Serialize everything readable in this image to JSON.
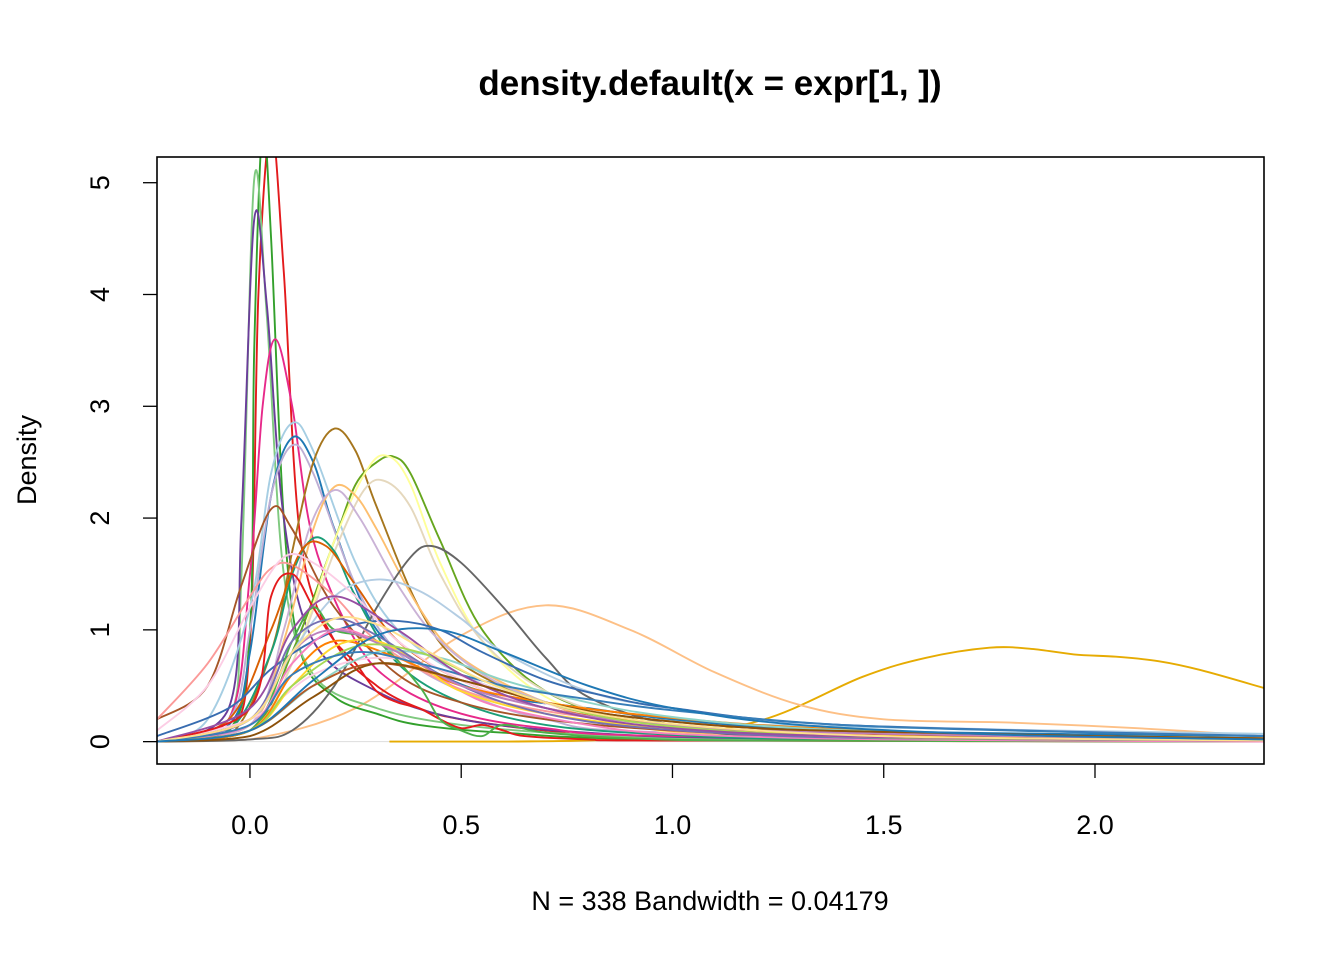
{
  "chart_data": {
    "type": "line",
    "title": "density.default(x = expr[1, ])",
    "xlabel": "N = 338   Bandwidth = 0.04179",
    "ylabel": "Density",
    "xlim": [
      -0.22,
      2.4
    ],
    "ylim": [
      -0.2,
      5.23
    ],
    "x_ticks": [
      0.0,
      0.5,
      1.0,
      1.5,
      2.0
    ],
    "x_tick_labels": [
      "0.0",
      "0.5",
      "1.0",
      "1.5",
      "2.0"
    ],
    "y_ticks": [
      0,
      1,
      2,
      3,
      4,
      5
    ],
    "y_tick_labels": [
      "0",
      "1",
      "2",
      "3",
      "4",
      "5"
    ],
    "grid": false,
    "legend": "none",
    "series": [
      {
        "color": "#E6AB02",
        "x": [
          0.33,
          0.6,
          0.9,
          1.2,
          1.45,
          1.6,
          1.75,
          1.85,
          1.95,
          2.05,
          2.15,
          2.25,
          2.4
        ],
        "y": [
          0.0,
          0.0,
          0.03,
          0.18,
          0.58,
          0.75,
          0.84,
          0.83,
          0.78,
          0.76,
          0.72,
          0.64,
          0.48
        ]
      },
      {
        "color": "#FDC086",
        "x": [
          -0.22,
          0.0,
          0.25,
          0.5,
          0.7,
          0.9,
          1.1,
          1.3,
          1.5,
          1.8,
          2.1,
          2.4
        ],
        "y": [
          0.0,
          0.02,
          0.3,
          0.95,
          1.22,
          1.0,
          0.62,
          0.33,
          0.2,
          0.17,
          0.12,
          0.05
        ]
      },
      {
        "color": "#E31A1C",
        "x": [
          -0.22,
          -0.05,
          0.0,
          0.02,
          0.05,
          0.08,
          0.12,
          0.2,
          0.3,
          0.4,
          0.5,
          0.7,
          1.0,
          2.4
        ],
        "y": [
          0.0,
          0.1,
          0.9,
          4.0,
          5.5,
          4.2,
          1.8,
          0.9,
          0.5,
          0.3,
          0.2,
          0.1,
          0.03,
          0.0
        ]
      },
      {
        "color": "#33A02C",
        "x": [
          -0.22,
          -0.05,
          0.0,
          0.01,
          0.03,
          0.05,
          0.08,
          0.12,
          0.2,
          0.3,
          0.4,
          0.6,
          1.0,
          2.4
        ],
        "y": [
          0.0,
          0.1,
          1.0,
          3.5,
          5.5,
          4.5,
          2.0,
          0.8,
          0.4,
          0.25,
          0.15,
          0.08,
          0.02,
          0.0
        ]
      },
      {
        "color": "#7FC97F",
        "x": [
          -0.22,
          -0.05,
          -0.02,
          0.01,
          0.04,
          0.08,
          0.15,
          0.3,
          0.5,
          0.8,
          1.2,
          2.4
        ],
        "y": [
          0.0,
          0.2,
          1.5,
          5.03,
          3.8,
          1.5,
          0.6,
          0.3,
          0.15,
          0.06,
          0.02,
          0.0
        ]
      },
      {
        "color": "#6A3D9A",
        "x": [
          -0.22,
          -0.05,
          -0.02,
          0.01,
          0.04,
          0.08,
          0.15,
          0.3,
          0.5,
          0.8,
          1.2,
          2.4
        ],
        "y": [
          0.0,
          0.3,
          2.0,
          4.67,
          3.9,
          2.0,
          0.9,
          0.45,
          0.2,
          0.08,
          0.03,
          0.0
        ]
      },
      {
        "color": "#E7298A",
        "x": [
          -0.22,
          -0.05,
          0.0,
          0.03,
          0.06,
          0.1,
          0.15,
          0.25,
          0.35,
          0.5,
          0.7,
          1.0,
          2.4
        ],
        "y": [
          0.0,
          0.2,
          1.5,
          3.0,
          3.6,
          3.0,
          1.8,
          0.9,
          0.5,
          0.25,
          0.12,
          0.05,
          0.0
        ]
      },
      {
        "color": "#A6CEE3",
        "x": [
          -0.22,
          -0.1,
          0.0,
          0.05,
          0.1,
          0.15,
          0.25,
          0.35,
          0.5,
          0.7,
          0.9,
          1.2,
          2.4
        ],
        "y": [
          0.0,
          0.2,
          1.2,
          2.4,
          2.85,
          2.6,
          1.6,
          1.0,
          0.6,
          0.35,
          0.25,
          0.15,
          0.07
        ]
      },
      {
        "color": "#1F78B4",
        "x": [
          -0.22,
          -0.05,
          0.0,
          0.05,
          0.1,
          0.15,
          0.2,
          0.3,
          0.45,
          0.6,
          0.8,
          1.0,
          1.4,
          2.4
        ],
        "y": [
          0.0,
          0.15,
          0.8,
          2.2,
          2.72,
          2.5,
          1.9,
          1.0,
          0.6,
          0.4,
          0.3,
          0.2,
          0.1,
          0.05
        ]
      },
      {
        "color": "#BEAED4",
        "x": [
          -0.22,
          -0.05,
          0.0,
          0.05,
          0.1,
          0.15,
          0.25,
          0.35,
          0.5,
          0.7,
          1.0,
          2.4
        ],
        "y": [
          0.0,
          0.2,
          1.0,
          2.2,
          2.65,
          2.4,
          1.4,
          0.8,
          0.45,
          0.2,
          0.08,
          0.0
        ]
      },
      {
        "color": "#A6761D",
        "x": [
          -0.22,
          -0.05,
          0.05,
          0.1,
          0.15,
          0.2,
          0.25,
          0.3,
          0.4,
          0.5,
          0.7,
          0.9,
          1.2,
          2.4
        ],
        "y": [
          0.0,
          0.05,
          0.8,
          1.7,
          2.5,
          2.8,
          2.6,
          2.1,
          1.2,
          0.7,
          0.35,
          0.2,
          0.1,
          0.03
        ]
      },
      {
        "color": "#66A61E",
        "x": [
          -0.22,
          0.0,
          0.1,
          0.2,
          0.25,
          0.3,
          0.34,
          0.38,
          0.45,
          0.55,
          0.7,
          0.9,
          1.2,
          2.4
        ],
        "y": [
          0.0,
          0.1,
          0.8,
          1.8,
          2.3,
          2.5,
          2.55,
          2.4,
          1.8,
          1.0,
          0.45,
          0.2,
          0.07,
          0.0
        ]
      },
      {
        "color": "#FFFF99",
        "x": [
          -0.22,
          0.0,
          0.1,
          0.2,
          0.28,
          0.33,
          0.38,
          0.45,
          0.55,
          0.7,
          0.9,
          1.2,
          2.4
        ],
        "y": [
          0.0,
          0.1,
          0.7,
          1.8,
          2.45,
          2.55,
          2.3,
          1.6,
          0.9,
          0.4,
          0.15,
          0.05,
          0.0
        ]
      },
      {
        "color": "#E5D8BD",
        "x": [
          -0.22,
          0.0,
          0.1,
          0.2,
          0.27,
          0.32,
          0.38,
          0.45,
          0.55,
          0.7,
          0.9,
          1.2,
          2.4
        ],
        "y": [
          0.0,
          0.1,
          0.7,
          1.7,
          2.25,
          2.33,
          2.1,
          1.5,
          0.9,
          0.45,
          0.2,
          0.07,
          0.0
        ]
      },
      {
        "color": "#FDBF6F",
        "x": [
          -0.22,
          0.0,
          0.08,
          0.15,
          0.2,
          0.25,
          0.3,
          0.4,
          0.5,
          0.7,
          0.9,
          1.2,
          2.4
        ],
        "y": [
          0.0,
          0.15,
          0.9,
          1.9,
          2.28,
          2.2,
          1.9,
          1.2,
          0.75,
          0.35,
          0.15,
          0.06,
          0.02
        ]
      },
      {
        "color": "#CAB2D6",
        "x": [
          -0.22,
          0.0,
          0.08,
          0.14,
          0.2,
          0.26,
          0.35,
          0.45,
          0.6,
          0.8,
          1.0,
          1.4,
          2.4
        ],
        "y": [
          0.0,
          0.15,
          1.0,
          1.9,
          2.25,
          2.0,
          1.4,
          0.9,
          0.5,
          0.25,
          0.12,
          0.05,
          0.0
        ]
      },
      {
        "color": "#666666",
        "x": [
          -0.22,
          0.0,
          0.1,
          0.2,
          0.3,
          0.38,
          0.43,
          0.5,
          0.6,
          0.7,
          0.8,
          1.0,
          1.3,
          2.4
        ],
        "y": [
          0.0,
          0.02,
          0.1,
          0.5,
          1.2,
          1.65,
          1.75,
          1.6,
          1.2,
          0.75,
          0.4,
          0.15,
          0.04,
          0.0
        ]
      },
      {
        "color": "#1B9E77",
        "x": [
          -0.22,
          -0.05,
          0.05,
          0.1,
          0.15,
          0.2,
          0.25,
          0.35,
          0.5,
          0.7,
          1.0,
          1.4,
          2.4
        ],
        "y": [
          0.0,
          0.1,
          0.8,
          1.5,
          1.82,
          1.7,
          1.3,
          0.7,
          0.35,
          0.15,
          0.06,
          0.02,
          0.0
        ]
      },
      {
        "color": "#A65628",
        "x": [
          -0.22,
          -0.1,
          -0.02,
          0.05,
          0.1,
          0.2,
          0.35,
          0.5,
          0.7,
          1.0,
          1.4,
          2.4
        ],
        "y": [
          0.2,
          0.5,
          1.4,
          2.08,
          1.9,
          1.2,
          0.6,
          0.35,
          0.2,
          0.1,
          0.05,
          0.02
        ]
      },
      {
        "color": "#FB9A99",
        "x": [
          -0.22,
          -0.1,
          0.0,
          0.05,
          0.1,
          0.2,
          0.3,
          0.45,
          0.6,
          0.8,
          1.1,
          1.5,
          2.4
        ],
        "y": [
          0.2,
          0.7,
          1.3,
          1.55,
          1.58,
          1.3,
          0.9,
          0.55,
          0.35,
          0.22,
          0.12,
          0.06,
          0.02
        ]
      },
      {
        "color": "#D95F02",
        "x": [
          -0.22,
          -0.05,
          0.05,
          0.12,
          0.18,
          0.25,
          0.35,
          0.5,
          0.7,
          1.0,
          1.4,
          2.4
        ],
        "y": [
          0.0,
          0.2,
          1.0,
          1.7,
          1.75,
          1.4,
          0.9,
          0.55,
          0.3,
          0.15,
          0.06,
          0.01
        ]
      },
      {
        "color": "#B3CDE3",
        "x": [
          -0.22,
          0.0,
          0.1,
          0.2,
          0.3,
          0.4,
          0.5,
          0.6,
          0.8,
          1.0,
          1.4,
          2.4
        ],
        "y": [
          0.0,
          0.2,
          0.8,
          1.3,
          1.45,
          1.35,
          1.1,
          0.8,
          0.45,
          0.3,
          0.15,
          0.06
        ]
      },
      {
        "color": "#386CB0",
        "x": [
          -0.22,
          -0.05,
          0.05,
          0.15,
          0.25,
          0.35,
          0.45,
          0.55,
          0.7,
          0.85,
          1.0,
          1.4,
          2.4
        ],
        "y": [
          0.05,
          0.3,
          0.65,
          0.9,
          1.05,
          1.08,
          1.0,
          0.8,
          0.55,
          0.4,
          0.3,
          0.15,
          0.05
        ]
      },
      {
        "color": "#FCCDE5",
        "x": [
          -0.22,
          0.0,
          0.15,
          0.3,
          0.45,
          0.6,
          0.8,
          1.0,
          1.4,
          2.4
        ],
        "y": [
          0.0,
          0.2,
          0.6,
          0.75,
          0.65,
          0.45,
          0.25,
          0.12,
          0.05,
          0.01
        ]
      },
      {
        "color": "#FCCDE5",
        "x": [
          -0.22,
          -0.1,
          0.0,
          0.08,
          0.15,
          0.25,
          0.35,
          0.5,
          0.7,
          1.0,
          1.4,
          2.4
        ],
        "y": [
          0.1,
          0.5,
          1.2,
          1.65,
          1.6,
          1.3,
          0.9,
          0.55,
          0.3,
          0.12,
          0.05,
          0.01
        ]
      },
      {
        "color": "#E41A1C",
        "x": [
          -0.22,
          0.0,
          0.05,
          0.1,
          0.15,
          0.2,
          0.25,
          0.3,
          0.35,
          0.4,
          0.45,
          0.5,
          0.55,
          0.6,
          0.65,
          0.8,
          1.0,
          2.4
        ],
        "y": [
          0.0,
          0.3,
          1.3,
          1.5,
          1.2,
          0.9,
          0.7,
          0.45,
          0.35,
          0.3,
          0.2,
          0.12,
          0.15,
          0.1,
          0.05,
          0.02,
          0.01,
          0.0
        ]
      },
      {
        "color": "#4DAF4A",
        "x": [
          -0.22,
          0.0,
          0.1,
          0.15,
          0.2,
          0.3,
          0.4,
          0.45,
          0.5,
          0.55,
          0.6,
          0.7,
          0.9,
          1.2,
          2.4
        ],
        "y": [
          0.0,
          0.1,
          0.9,
          1.2,
          1.0,
          0.9,
          0.5,
          0.2,
          0.1,
          0.05,
          0.15,
          0.08,
          0.03,
          0.01,
          0.0
        ]
      },
      {
        "color": "#F781BF",
        "x": [
          -0.22,
          0.0,
          0.1,
          0.2,
          0.3,
          0.4,
          0.5,
          0.6,
          0.8,
          1.0,
          1.5,
          2.4
        ],
        "y": [
          0.0,
          0.15,
          0.7,
          1.0,
          0.9,
          0.7,
          0.45,
          0.3,
          0.15,
          0.07,
          0.02,
          0.0
        ]
      },
      {
        "color": "#FF7F00",
        "x": [
          -0.22,
          0.0,
          0.1,
          0.2,
          0.35,
          0.5,
          0.7,
          0.9,
          1.2,
          1.6,
          2.0,
          2.4
        ],
        "y": [
          0.0,
          0.1,
          0.6,
          0.9,
          0.75,
          0.5,
          0.35,
          0.25,
          0.15,
          0.08,
          0.04,
          0.02
        ]
      },
      {
        "color": "#FFD92F",
        "x": [
          -0.22,
          0.0,
          0.1,
          0.2,
          0.3,
          0.4,
          0.5,
          0.7,
          1.0,
          1.5,
          2.4
        ],
        "y": [
          0.0,
          0.1,
          0.5,
          0.85,
          0.9,
          0.7,
          0.45,
          0.25,
          0.12,
          0.05,
          0.01
        ]
      },
      {
        "color": "#8DD3C7",
        "x": [
          -0.22,
          0.0,
          0.15,
          0.3,
          0.45,
          0.6,
          0.8,
          1.0,
          1.3,
          1.8,
          2.4
        ],
        "y": [
          0.0,
          0.1,
          0.5,
          0.8,
          0.75,
          0.55,
          0.35,
          0.22,
          0.12,
          0.06,
          0.03
        ]
      },
      {
        "color": "#7570B3",
        "x": [
          -0.22,
          0.0,
          0.1,
          0.2,
          0.3,
          0.45,
          0.6,
          0.8,
          1.1,
          1.5,
          2.4
        ],
        "y": [
          0.0,
          0.2,
          0.9,
          1.1,
          0.95,
          0.6,
          0.35,
          0.18,
          0.08,
          0.03,
          0.01
        ]
      },
      {
        "color": "#B15928",
        "x": [
          -0.22,
          0.0,
          0.15,
          0.3,
          0.5,
          0.7,
          0.9,
          1.2,
          1.6,
          2.0,
          2.4
        ],
        "y": [
          0.0,
          0.1,
          0.5,
          0.7,
          0.55,
          0.35,
          0.22,
          0.12,
          0.06,
          0.04,
          0.03
        ]
      },
      {
        "color": "#BC80BD",
        "x": [
          -0.22,
          0.0,
          0.1,
          0.2,
          0.35,
          0.5,
          0.7,
          0.9,
          1.2,
          1.8,
          2.4
        ],
        "y": [
          0.0,
          0.2,
          0.8,
          1.0,
          0.8,
          0.5,
          0.3,
          0.18,
          0.1,
          0.05,
          0.02
        ]
      },
      {
        "color": "#A6D854",
        "x": [
          -0.22,
          0.0,
          0.1,
          0.25,
          0.4,
          0.55,
          0.7,
          0.9,
          1.2,
          1.6,
          2.4
        ],
        "y": [
          0.0,
          0.1,
          0.5,
          0.85,
          0.8,
          0.55,
          0.35,
          0.18,
          0.08,
          0.03,
          0.01
        ]
      },
      {
        "color": "#377EB8",
        "x": [
          -0.22,
          0.0,
          0.1,
          0.25,
          0.4,
          0.6,
          0.8,
          1.0,
          1.4,
          2.0,
          2.4
        ],
        "y": [
          0.0,
          0.15,
          0.6,
          0.8,
          0.7,
          0.5,
          0.38,
          0.28,
          0.15,
          0.08,
          0.05
        ]
      },
      {
        "color": "#984EA3",
        "x": [
          -0.22,
          0.0,
          0.1,
          0.2,
          0.35,
          0.5,
          0.7,
          1.0,
          1.5,
          2.4
        ],
        "y": [
          0.0,
          0.3,
          1.0,
          1.3,
          1.0,
          0.6,
          0.3,
          0.12,
          0.04,
          0.01
        ]
      },
      {
        "color": "#8C510A",
        "x": [
          -0.22,
          0.0,
          0.15,
          0.3,
          0.5,
          0.7,
          0.9,
          1.2,
          1.6,
          2.0,
          2.4
        ],
        "y": [
          0.0,
          0.05,
          0.4,
          0.7,
          0.55,
          0.35,
          0.22,
          0.12,
          0.08,
          0.05,
          0.03
        ]
      },
      {
        "color": "#FEE08B",
        "x": [
          -0.22,
          0.0,
          0.1,
          0.2,
          0.3,
          0.4,
          0.55,
          0.7,
          0.9,
          1.2,
          1.6,
          2.4
        ],
        "y": [
          0.0,
          0.2,
          0.8,
          1.1,
          1.05,
          0.85,
          0.55,
          0.35,
          0.2,
          0.1,
          0.04,
          0.01
        ]
      },
      {
        "color": "#1F78B4",
        "x": [
          -0.22,
          0.0,
          0.15,
          0.3,
          0.45,
          0.6,
          0.8,
          1.0,
          1.3,
          1.8,
          2.4
        ],
        "y": [
          0.0,
          0.1,
          0.55,
          0.95,
          1.0,
          0.8,
          0.5,
          0.3,
          0.15,
          0.06,
          0.02
        ]
      }
    ]
  }
}
